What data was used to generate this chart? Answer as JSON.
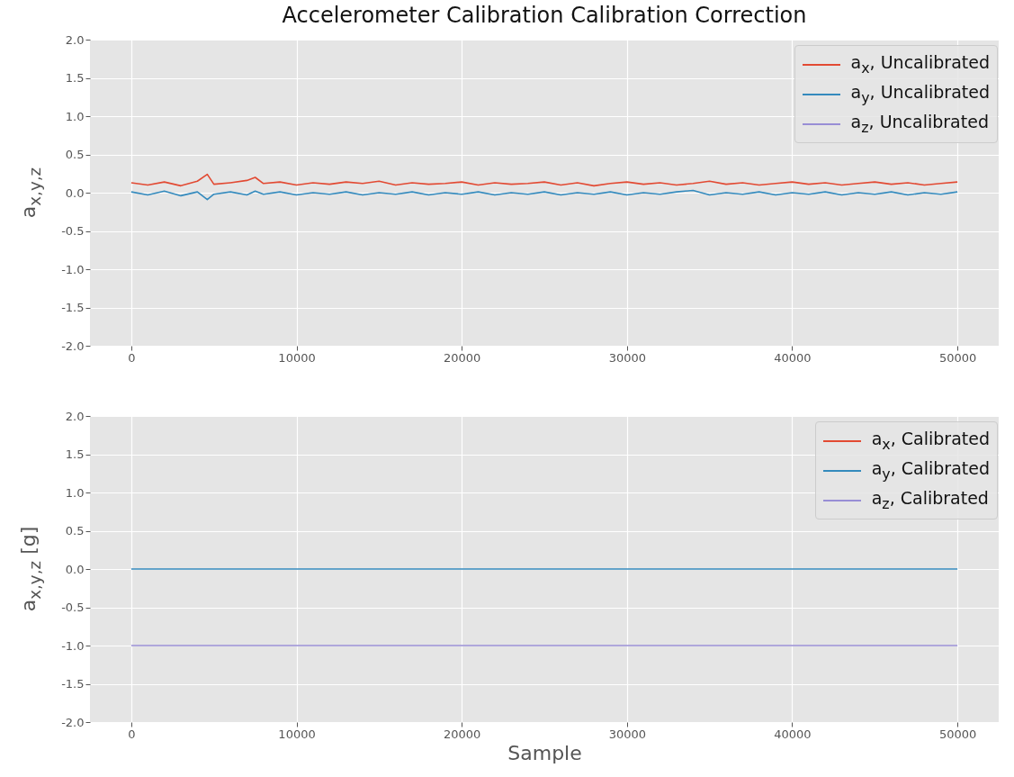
{
  "chart_data": [
    {
      "type": "line",
      "title": "Accelerometer Calibration Calibration Correction",
      "ylabel": "a$_{x,y,z}$",
      "x": [
        0,
        1000,
        2000,
        3000,
        4000,
        4600,
        5000,
        6000,
        7000,
        7500,
        8000,
        9000,
        10000,
        11000,
        12000,
        13000,
        14000,
        15000,
        16000,
        17000,
        18000,
        19000,
        20000,
        21000,
        22000,
        23000,
        24000,
        25000,
        26000,
        27000,
        28000,
        29000,
        30000,
        31000,
        32000,
        33000,
        34000,
        35000,
        36000,
        37000,
        38000,
        39000,
        40000,
        41000,
        42000,
        43000,
        44000,
        45000,
        46000,
        47000,
        48000,
        49000,
        50000
      ],
      "series": [
        {
          "name": "a$_{x}$, Uncalibrated",
          "color": "#e24a33",
          "values": [
            0.13,
            0.1,
            0.14,
            0.09,
            0.15,
            0.24,
            0.11,
            0.13,
            0.16,
            0.2,
            0.12,
            0.14,
            0.1,
            0.13,
            0.11,
            0.14,
            0.12,
            0.15,
            0.1,
            0.13,
            0.11,
            0.12,
            0.14,
            0.1,
            0.13,
            0.11,
            0.12,
            0.14,
            0.1,
            0.13,
            0.09,
            0.12,
            0.14,
            0.11,
            0.13,
            0.1,
            0.12,
            0.15,
            0.11,
            0.13,
            0.1,
            0.12,
            0.14,
            0.11,
            0.13,
            0.1,
            0.12,
            0.14,
            0.11,
            0.13,
            0.1,
            0.12,
            0.14
          ]
        },
        {
          "name": "a$_{y}$, Uncalibrated",
          "color": "#348abd",
          "values": [
            0.01,
            -0.03,
            0.02,
            -0.04,
            0.01,
            -0.09,
            -0.02,
            0.01,
            -0.03,
            0.02,
            -0.02,
            0.01,
            -0.03,
            0.0,
            -0.02,
            0.01,
            -0.03,
            0.0,
            -0.02,
            0.01,
            -0.03,
            0.0,
            -0.02,
            0.01,
            -0.03,
            0.0,
            -0.02,
            0.01,
            -0.03,
            0.0,
            -0.02,
            0.01,
            -0.03,
            0.0,
            -0.02,
            0.01,
            0.03,
            -0.03,
            0.0,
            -0.02,
            0.01,
            -0.03,
            0.0,
            -0.02,
            0.01,
            -0.03,
            0.0,
            -0.02,
            0.01,
            -0.03,
            0.0,
            -0.02,
            0.01
          ]
        },
        {
          "name": "a$_{z}$, Uncalibrated",
          "color": "#988ed5",
          "values": [
            null,
            null,
            null,
            null,
            null,
            null,
            null,
            null,
            null,
            null,
            null,
            null,
            null,
            null,
            null,
            null,
            null,
            null,
            null,
            null,
            null,
            null,
            null,
            null,
            null,
            null,
            null,
            null,
            null,
            null,
            null,
            null,
            null,
            null,
            null,
            null,
            null,
            null,
            null,
            null,
            null,
            null,
            null,
            null,
            null,
            null,
            null,
            null,
            null,
            null,
            null,
            null,
            null
          ]
        }
      ],
      "xlim": [
        -2500,
        52500
      ],
      "xticks": [
        0,
        10000,
        20000,
        30000,
        40000,
        50000
      ],
      "ylim": [
        -2,
        2
      ],
      "yticks": [
        {
          "value": -2,
          "label": "-2.0"
        },
        -1.5,
        {
          "value": -1,
          "label": "-1.0"
        },
        -0.5,
        {
          "value": 0,
          "label": "0.0"
        },
        0.5,
        {
          "value": 1,
          "label": "1.0"
        },
        1.5,
        {
          "value": 2,
          "label": "2.0"
        }
      ],
      "grid": true,
      "legend": "top right"
    },
    {
      "type": "line",
      "xlabel": "Sample",
      "ylabel": "a$_{x,y,z}$ [g]",
      "x": [
        0,
        5000,
        10000,
        15000,
        20000,
        25000,
        30000,
        35000,
        40000,
        45000,
        50000
      ],
      "series": [
        {
          "name": "a$_{x}$, Calibrated",
          "color": "#e24a33",
          "values": [
            null,
            null,
            null,
            null,
            null,
            null,
            null,
            null,
            null,
            null,
            null
          ]
        },
        {
          "name": "a$_{y}$, Calibrated",
          "color": "#348abd",
          "values": [
            0,
            0,
            0,
            0,
            0,
            0,
            0,
            0,
            0,
            0,
            0
          ]
        },
        {
          "name": "a$_{z}$, Calibrated",
          "color": "#988ed5",
          "values": [
            -1,
            -1,
            -1,
            -1,
            -1,
            -1,
            -1,
            -1,
            -1,
            -1,
            -1
          ]
        }
      ],
      "xlim": [
        -2500,
        52500
      ],
      "xticks": [
        0,
        10000,
        20000,
        30000,
        40000,
        50000
      ],
      "ylim": [
        -2,
        2
      ],
      "yticks": [
        {
          "value": -2,
          "label": "-2.0"
        },
        -1.5,
        {
          "value": -1,
          "label": "-1.0"
        },
        -0.5,
        {
          "value": 0,
          "label": "0.0"
        },
        0.5,
        {
          "value": 1,
          "label": "1.0"
        },
        1.5,
        {
          "value": 2,
          "label": "2.0"
        }
      ],
      "grid": true,
      "legend": "top right"
    }
  ]
}
